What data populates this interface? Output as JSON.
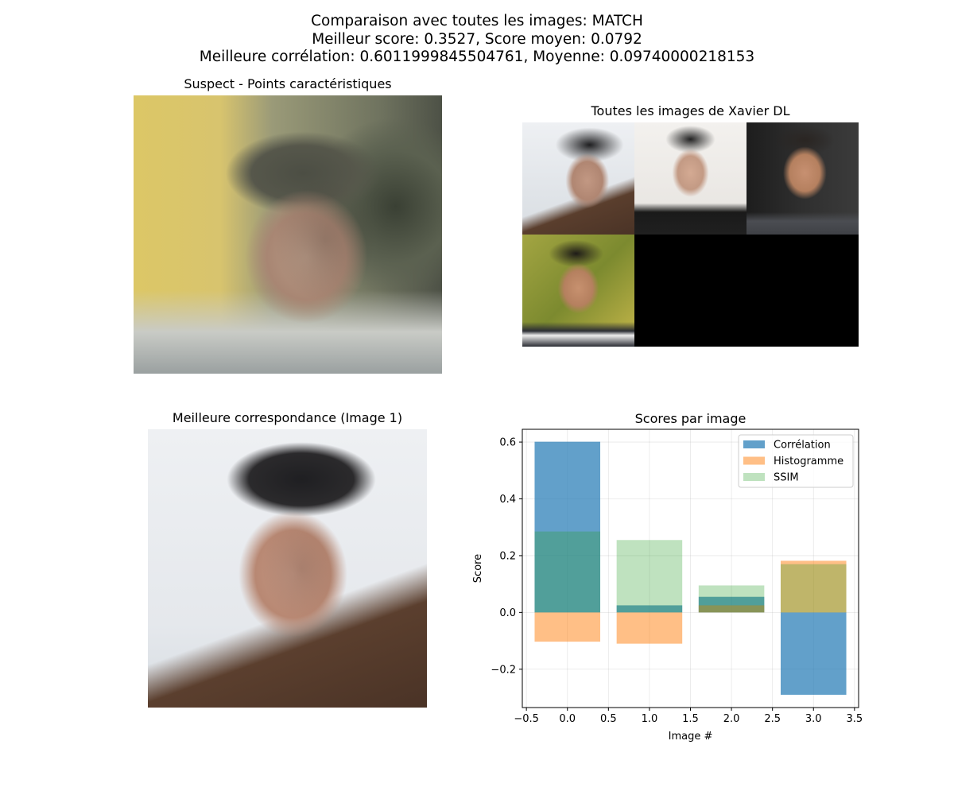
{
  "suptitle": {
    "line1": "Comparaison avec toutes les images: MATCH",
    "line2": "Meilleur score: 0.3527, Score moyen: 0.0792",
    "line3": "Meilleure corrélation: 0.6011999845504761, Moyenne: 0.09740000218153"
  },
  "panels": {
    "suspect_title": "Suspect - Points caractéristiques",
    "gallery_title": "Toutes les images de Xavier DL",
    "best_match_title": "Meilleure correspondance (Image 1)"
  },
  "colors": {
    "correlation": "#1f77b4",
    "histogram": "#ff7f0e",
    "ssim": "#2ca02c"
  },
  "chart_data": {
    "type": "bar",
    "title": "Scores par image",
    "xlabel": "Image #",
    "ylabel": "Score",
    "x": [
      0,
      1,
      2,
      3
    ],
    "xlim": [
      -0.55,
      3.55
    ],
    "ylim": [
      -0.335,
      0.645
    ],
    "xticks": [
      -0.5,
      0.0,
      0.5,
      1.0,
      1.5,
      2.0,
      2.5,
      3.0,
      3.5
    ],
    "xtick_labels": [
      "−0.5",
      "0.0",
      "0.5",
      "1.0",
      "1.5",
      "2.0",
      "2.5",
      "3.0",
      "3.5"
    ],
    "yticks": [
      -0.2,
      0.0,
      0.2,
      0.4,
      0.6
    ],
    "ytick_labels": [
      "−0.2",
      "0.0",
      "0.2",
      "0.4",
      "0.6"
    ],
    "grid": true,
    "legend_position": "top-right",
    "bar_width": 0.8,
    "series": [
      {
        "name": "Corrélation",
        "values": [
          0.6012,
          0.025,
          0.055,
          -0.29
        ],
        "color": "#1f77b4",
        "alpha": 0.7
      },
      {
        "name": "Histogramme",
        "values": [
          -0.103,
          -0.11,
          0.025,
          0.182
        ],
        "color": "#ff7f0e",
        "alpha": 0.5
      },
      {
        "name": "SSIM",
        "values": [
          0.285,
          0.255,
          0.095,
          0.17
        ],
        "color": "#2ca02c",
        "alpha": 0.3
      }
    ]
  }
}
